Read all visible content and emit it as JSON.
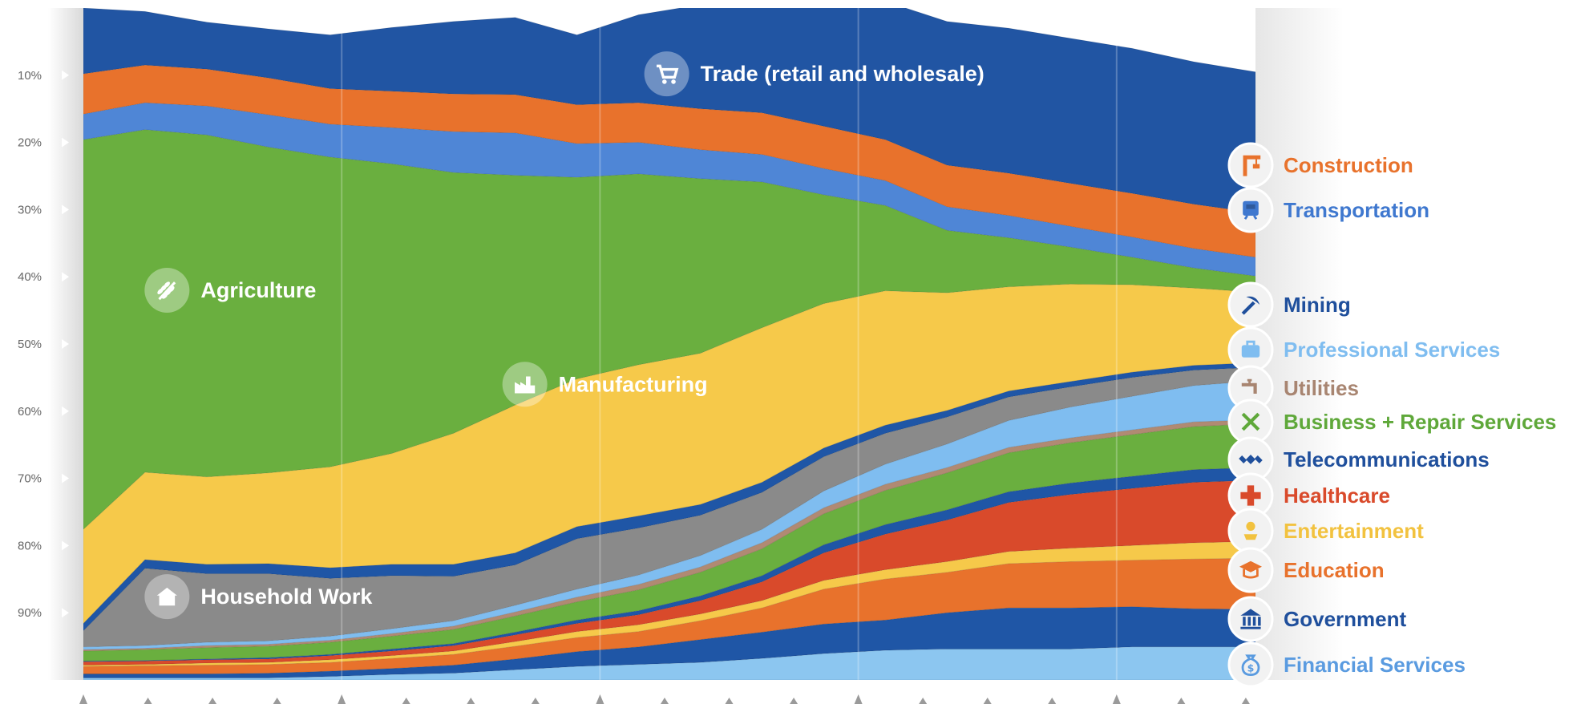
{
  "chart_data": {
    "type": "area",
    "stacked": true,
    "normalized": true,
    "title": "",
    "xlabel": "",
    "ylabel": "",
    "ylim": [
      0,
      100
    ],
    "y_ticks": [
      {
        "value": 10,
        "label": "10%"
      },
      {
        "value": 20,
        "label": "20%"
      },
      {
        "value": 30,
        "label": "30%"
      },
      {
        "value": 40,
        "label": "40%"
      },
      {
        "value": 50,
        "label": "50%"
      },
      {
        "value": 60,
        "label": "60%"
      },
      {
        "value": 70,
        "label": "70%"
      },
      {
        "value": 80,
        "label": "80%"
      },
      {
        "value": 90,
        "label": "90%"
      }
    ],
    "x": [
      0,
      1,
      2,
      3,
      4,
      5,
      6,
      7,
      8,
      9,
      10,
      11,
      12,
      13,
      14,
      15,
      16,
      17,
      18,
      19
    ],
    "x_tick_labels": [],
    "series": [
      {
        "name": "Financial Services",
        "icon": "coin-bag-icon",
        "color": "#8cc6f0",
        "values": [
          0.3,
          0.3,
          0.3,
          0.3,
          0.5,
          0.8,
          1,
          1.5,
          2,
          2.3,
          2.6,
          3.2,
          3.9,
          4.4,
          4.6,
          4.6,
          4.6,
          4.9,
          4.9,
          4.9
        ]
      },
      {
        "name": "Government",
        "icon": "building-columns-icon",
        "color": "#1f56a6",
        "values": [
          0.6,
          0.6,
          0.6,
          0.7,
          0.8,
          0.9,
          1.2,
          1.6,
          2.2,
          2.6,
          3.4,
          3.9,
          4.4,
          4.5,
          5.4,
          6.1,
          6.1,
          6,
          5.7,
          5.6
        ]
      },
      {
        "name": "Education",
        "icon": "graduation-cap-icon",
        "color": "#e8722c",
        "values": [
          1.1,
          1.2,
          1.3,
          1.3,
          1.3,
          1.5,
          1.6,
          1.9,
          2.1,
          2.3,
          2.8,
          3.6,
          5.2,
          6.1,
          6,
          6.6,
          6.9,
          6.9,
          7.4,
          7.6
        ]
      },
      {
        "name": "Entertainment",
        "icon": "microphone-icon",
        "color": "#f6c94a",
        "values": [
          0.2,
          0.2,
          0.3,
          0.3,
          0.4,
          0.4,
          0.5,
          0.7,
          0.9,
          1,
          1,
          1.1,
          1.3,
          1.4,
          1.6,
          1.8,
          2,
          2.2,
          2.4,
          2.5
        ]
      },
      {
        "name": "Healthcare",
        "icon": "medical-cross-icon",
        "color": "#d94a2b",
        "values": [
          0.5,
          0.5,
          0.5,
          0.5,
          0.6,
          0.7,
          0.8,
          1,
          1.2,
          1.5,
          2,
          2.8,
          4.1,
          5.3,
          6.2,
          7.3,
          8,
          8.5,
          9,
          9.1
        ]
      },
      {
        "name": "Telecommunications",
        "icon": "satellite-icon",
        "color": "#1f56a6",
        "values": [
          0.1,
          0.1,
          0.1,
          0.2,
          0.2,
          0.3,
          0.3,
          0.4,
          0.5,
          0.6,
          0.7,
          0.9,
          1.2,
          1.4,
          1.5,
          1.6,
          1.7,
          1.8,
          1.9,
          1.9
        ]
      },
      {
        "name": "Business + Repair Services",
        "icon": "tools-icon",
        "color": "#6aaf3f",
        "values": [
          1.5,
          1.6,
          1.7,
          1.7,
          1.8,
          1.9,
          2.1,
          2.4,
          2.7,
          3.1,
          3.5,
          4,
          4.6,
          5.1,
          5.5,
          5.8,
          6,
          6.2,
          6.4,
          6.5
        ]
      },
      {
        "name": "Utilities",
        "icon": "faucet-icon",
        "color": "#b08a73",
        "values": [
          0.2,
          0.2,
          0.3,
          0.3,
          0.3,
          0.4,
          0.5,
          0.6,
          0.7,
          0.8,
          0.8,
          0.9,
          0.9,
          0.9,
          0.8,
          0.8,
          0.7,
          0.7,
          0.7,
          0.6
        ]
      },
      {
        "name": "Professional Services",
        "icon": "briefcase-icon",
        "color": "#7fbdf0",
        "values": [
          0.4,
          0.4,
          0.5,
          0.5,
          0.6,
          0.7,
          0.8,
          1,
          1.2,
          1.4,
          1.7,
          2,
          2.5,
          3,
          3.5,
          4,
          4.6,
          5,
          5.4,
          5.8
        ]
      },
      {
        "name": "Household Work",
        "icon": "house-icon",
        "color": "#8a8a8a",
        "values": [
          2.4,
          11.5,
          10.2,
          10,
          8.6,
          7.9,
          6.6,
          6,
          7.5,
          7,
          6,
          5.5,
          5.1,
          4.6,
          4,
          3.5,
          3,
          2.8,
          2.3,
          2
        ]
      },
      {
        "name": "Mining",
        "icon": "pickaxe-icon",
        "color": "#1f56a6",
        "values": [
          1.1,
          1.3,
          1.4,
          1.5,
          1.6,
          1.7,
          1.8,
          1.8,
          1.8,
          1.8,
          1.6,
          1.5,
          1.3,
          1.2,
          1,
          0.9,
          0.8,
          0.8,
          0.7,
          0.7
        ]
      },
      {
        "name": "Manufacturing",
        "icon": "factory-icon",
        "color": "#f6c94a",
        "values": [
          14,
          13,
          13,
          13.5,
          15,
          16.5,
          19.5,
          22,
          22,
          22.5,
          22.5,
          23,
          21.5,
          20,
          17.5,
          15.5,
          14.5,
          13,
          11.5,
          10.5
        ]
      },
      {
        "name": "Agriculture",
        "icon": "wheat-icon",
        "color": "#6aaf3f",
        "values": [
          58,
          51,
          50.9,
          48.5,
          46.1,
          43.1,
          38.8,
          34.2,
          30,
          28.4,
          26,
          21.7,
          16.2,
          12.7,
          9.3,
          7.3,
          5.5,
          4.1,
          3,
          2.4
        ]
      },
      {
        "name": "Transportation",
        "icon": "train-icon",
        "color": "#4f86d6",
        "values": [
          3.8,
          4,
          4.3,
          4.8,
          4.9,
          5.4,
          6.1,
          6.3,
          5,
          4.7,
          4.3,
          4.1,
          3.9,
          3.7,
          3.5,
          3.3,
          3.1,
          3,
          2.9,
          2.8
        ]
      },
      {
        "name": "Construction",
        "icon": "crane-icon",
        "color": "#e8722c",
        "values": [
          6,
          5.6,
          5.5,
          5.5,
          5.3,
          5.4,
          5.6,
          5.7,
          5.8,
          5.9,
          6.1,
          6.2,
          6.3,
          6.1,
          6.2,
          6.3,
          6.4,
          6.5,
          6.6,
          6.6
        ]
      },
      {
        "name": "Trade (retail and wholesale)",
        "icon": "shopping-cart-icon",
        "color": "#2155a3",
        "values": [
          9.8,
          8,
          7,
          7.3,
          8,
          9.5,
          10.8,
          11.5,
          10.4,
          13.1,
          15.5,
          18.7,
          19.6,
          20.6,
          21.4,
          21.6,
          21.6,
          21.6,
          21.2,
          21
        ]
      }
    ],
    "inner_labels": [
      {
        "series": "Trade (retail and wholesale)",
        "text": "Trade (retail and wholesale)"
      },
      {
        "series": "Agriculture",
        "text": "Agriculture"
      },
      {
        "series": "Manufacturing",
        "text": "Manufacturing"
      },
      {
        "series": "Household Work",
        "text": "Household Work"
      }
    ],
    "legend": {
      "placement": "right",
      "entries": [
        {
          "text": "Construction",
          "color": "#e8722c",
          "icon": "crane-icon"
        },
        {
          "text": "Transportation",
          "color": "#3f78cf",
          "icon": "train-icon"
        },
        {
          "text": "Mining",
          "color": "#1f4f9c",
          "icon": "pickaxe-icon"
        },
        {
          "text": "Professional Services",
          "color": "#7fbdf0",
          "icon": "briefcase-icon"
        },
        {
          "text": "Utilities",
          "color": "#a88571",
          "icon": "faucet-icon"
        },
        {
          "text": "Business + Repair Services",
          "color": "#5fa83a",
          "icon": "tools-icon"
        },
        {
          "text": "Telecommunications",
          "color": "#1f4f9c",
          "icon": "satellite-icon"
        },
        {
          "text": "Healthcare",
          "color": "#d94a2b",
          "icon": "medical-cross-icon"
        },
        {
          "text": "Entertainment",
          "color": "#f2c23f",
          "icon": "microphone-icon"
        },
        {
          "text": "Education",
          "color": "#e8722c",
          "icon": "graduation-cap-icon"
        },
        {
          "text": "Government",
          "color": "#1f4f9c",
          "icon": "building-columns-icon"
        },
        {
          "text": "Financial Services",
          "color": "#5a9be0",
          "icon": "coin-bag-icon"
        }
      ]
    },
    "grid": false,
    "vertical_guides": true
  }
}
